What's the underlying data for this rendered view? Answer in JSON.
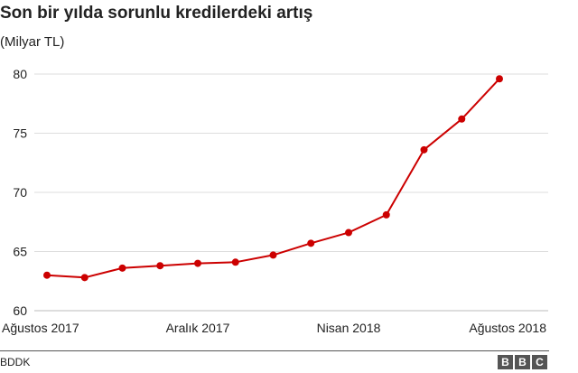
{
  "header": {
    "title": "Son bir yılda sorunlu kredilerdeki artış",
    "subtitle": "(Milyar TL)"
  },
  "footer": {
    "source": "BDDK",
    "logo": [
      "B",
      "B",
      "C"
    ]
  },
  "colors": {
    "series": "#cc0000",
    "grid": "#dddddd",
    "axis_text": "#222222"
  },
  "chart_data": {
    "type": "line",
    "title": "Son bir yılda sorunlu kredilerdeki artış",
    "subtitle": "(Milyar TL)",
    "xlabel": "",
    "ylabel": "",
    "ylim": [
      60,
      80
    ],
    "yticks": [
      60,
      65,
      70,
      75,
      80
    ],
    "x_tick_labels": [
      {
        "index": 0,
        "label": "Ağustos 2017"
      },
      {
        "index": 4,
        "label": "Aralık 2017"
      },
      {
        "index": 8,
        "label": "Nisan 2018"
      },
      {
        "index": 12,
        "label": "Ağustos 2018"
      }
    ],
    "grid": true,
    "markers": true,
    "series": [
      {
        "x": [
          "Ağustos 2017",
          "Eylül 2017",
          "Ekim 2017",
          "Kasım 2017",
          "Aralık 2017",
          "Ocak 2018",
          "Şubat 2018",
          "Mart 2018",
          "Nisan 2018",
          "Mayıs 2018",
          "Haziran 2018",
          "Temmuz 2018",
          "Ağustos 2018"
        ],
        "values": [
          63.0,
          62.8,
          63.6,
          63.8,
          64.0,
          64.1,
          64.7,
          65.7,
          66.6,
          68.1,
          73.6,
          76.2,
          79.6
        ]
      }
    ]
  }
}
